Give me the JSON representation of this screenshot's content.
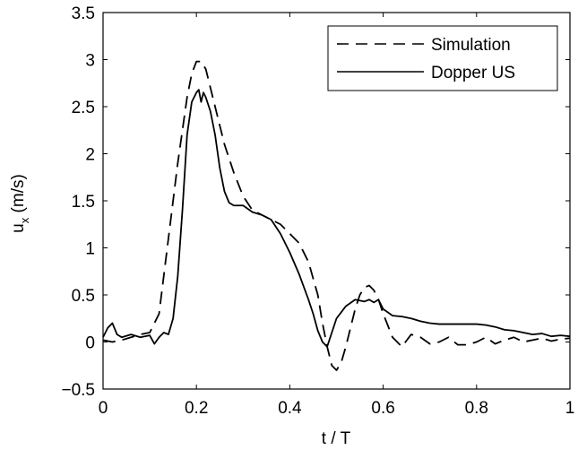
{
  "chart_data": {
    "type": "line",
    "xlabel": "t / T",
    "ylabel_main": "u",
    "ylabel_sub": "x",
    "ylabel_unit": " (m/s)",
    "xlim": [
      0,
      1
    ],
    "ylim": [
      -0.5,
      3.5
    ],
    "xticks": [
      {
        "value": 0,
        "label": "0"
      },
      {
        "value": 0.2,
        "label": "0.2"
      },
      {
        "value": 0.4,
        "label": "0.4"
      },
      {
        "value": 0.6,
        "label": "0.6"
      },
      {
        "value": 0.8,
        "label": "0.8"
      },
      {
        "value": 1,
        "label": "1"
      }
    ],
    "yticks": [
      {
        "value": -0.5,
        "label": "−0.5"
      },
      {
        "value": 0,
        "label": "0"
      },
      {
        "value": 0.5,
        "label": "0.5"
      },
      {
        "value": 1,
        "label": "1"
      },
      {
        "value": 1.5,
        "label": "1.5"
      },
      {
        "value": 2,
        "label": "2"
      },
      {
        "value": 2.5,
        "label": "2.5"
      },
      {
        "value": 3,
        "label": "3"
      },
      {
        "value": 3.5,
        "label": "3.5"
      }
    ],
    "grid": false,
    "legend_position": "top-right",
    "series": [
      {
        "name": "Simulation",
        "style": "dashed",
        "color": "#000000",
        "x": [
          0,
          0.02,
          0.04,
          0.06,
          0.08,
          0.1,
          0.12,
          0.14,
          0.16,
          0.18,
          0.19,
          0.2,
          0.21,
          0.22,
          0.23,
          0.24,
          0.26,
          0.28,
          0.3,
          0.32,
          0.34,
          0.36,
          0.38,
          0.4,
          0.42,
          0.44,
          0.46,
          0.47,
          0.48,
          0.49,
          0.5,
          0.51,
          0.52,
          0.53,
          0.54,
          0.55,
          0.56,
          0.57,
          0.58,
          0.59,
          0.6,
          0.62,
          0.64,
          0.66,
          0.68,
          0.7,
          0.72,
          0.74,
          0.76,
          0.78,
          0.8,
          0.82,
          0.84,
          0.86,
          0.88,
          0.9,
          0.92,
          0.94,
          0.96,
          0.98,
          1.0
        ],
        "y": [
          0.02,
          0.0,
          0.02,
          0.05,
          0.08,
          0.1,
          0.3,
          1.1,
          1.9,
          2.6,
          2.85,
          2.98,
          2.98,
          2.9,
          2.7,
          2.5,
          2.1,
          1.8,
          1.55,
          1.4,
          1.35,
          1.3,
          1.25,
          1.15,
          1.05,
          0.85,
          0.5,
          0.2,
          -0.05,
          -0.25,
          -0.3,
          -0.22,
          -0.05,
          0.15,
          0.35,
          0.5,
          0.58,
          0.6,
          0.55,
          0.45,
          0.3,
          0.05,
          -0.05,
          0.08,
          0.05,
          -0.02,
          0.0,
          0.05,
          -0.03,
          -0.03,
          0.0,
          0.05,
          -0.02,
          0.02,
          0.05,
          0.0,
          0.02,
          0.04,
          0.01,
          0.03,
          0.04
        ]
      },
      {
        "name": "Dopper US",
        "style": "solid",
        "color": "#000000",
        "x": [
          0,
          0.01,
          0.02,
          0.03,
          0.04,
          0.06,
          0.08,
          0.1,
          0.11,
          0.12,
          0.13,
          0.14,
          0.15,
          0.16,
          0.17,
          0.18,
          0.19,
          0.2,
          0.205,
          0.21,
          0.215,
          0.22,
          0.23,
          0.24,
          0.25,
          0.26,
          0.27,
          0.28,
          0.3,
          0.32,
          0.34,
          0.36,
          0.38,
          0.4,
          0.42,
          0.44,
          0.45,
          0.46,
          0.47,
          0.48,
          0.49,
          0.5,
          0.52,
          0.54,
          0.56,
          0.57,
          0.58,
          0.59,
          0.6,
          0.62,
          0.64,
          0.66,
          0.68,
          0.7,
          0.72,
          0.74,
          0.76,
          0.78,
          0.8,
          0.82,
          0.84,
          0.86,
          0.88,
          0.9,
          0.92,
          0.94,
          0.96,
          0.98,
          1.0
        ],
        "y": [
          0.05,
          0.15,
          0.2,
          0.08,
          0.05,
          0.08,
          0.05,
          0.07,
          -0.02,
          0.05,
          0.1,
          0.08,
          0.25,
          0.7,
          1.4,
          2.2,
          2.55,
          2.65,
          2.68,
          2.55,
          2.65,
          2.6,
          2.45,
          2.2,
          1.85,
          1.6,
          1.48,
          1.45,
          1.45,
          1.38,
          1.35,
          1.3,
          1.15,
          0.95,
          0.72,
          0.45,
          0.3,
          0.12,
          0.0,
          -0.05,
          0.1,
          0.25,
          0.38,
          0.45,
          0.43,
          0.45,
          0.42,
          0.45,
          0.35,
          0.28,
          0.27,
          0.25,
          0.22,
          0.2,
          0.19,
          0.19,
          0.19,
          0.19,
          0.19,
          0.18,
          0.16,
          0.13,
          0.12,
          0.1,
          0.08,
          0.09,
          0.06,
          0.07,
          0.06
        ]
      }
    ]
  }
}
